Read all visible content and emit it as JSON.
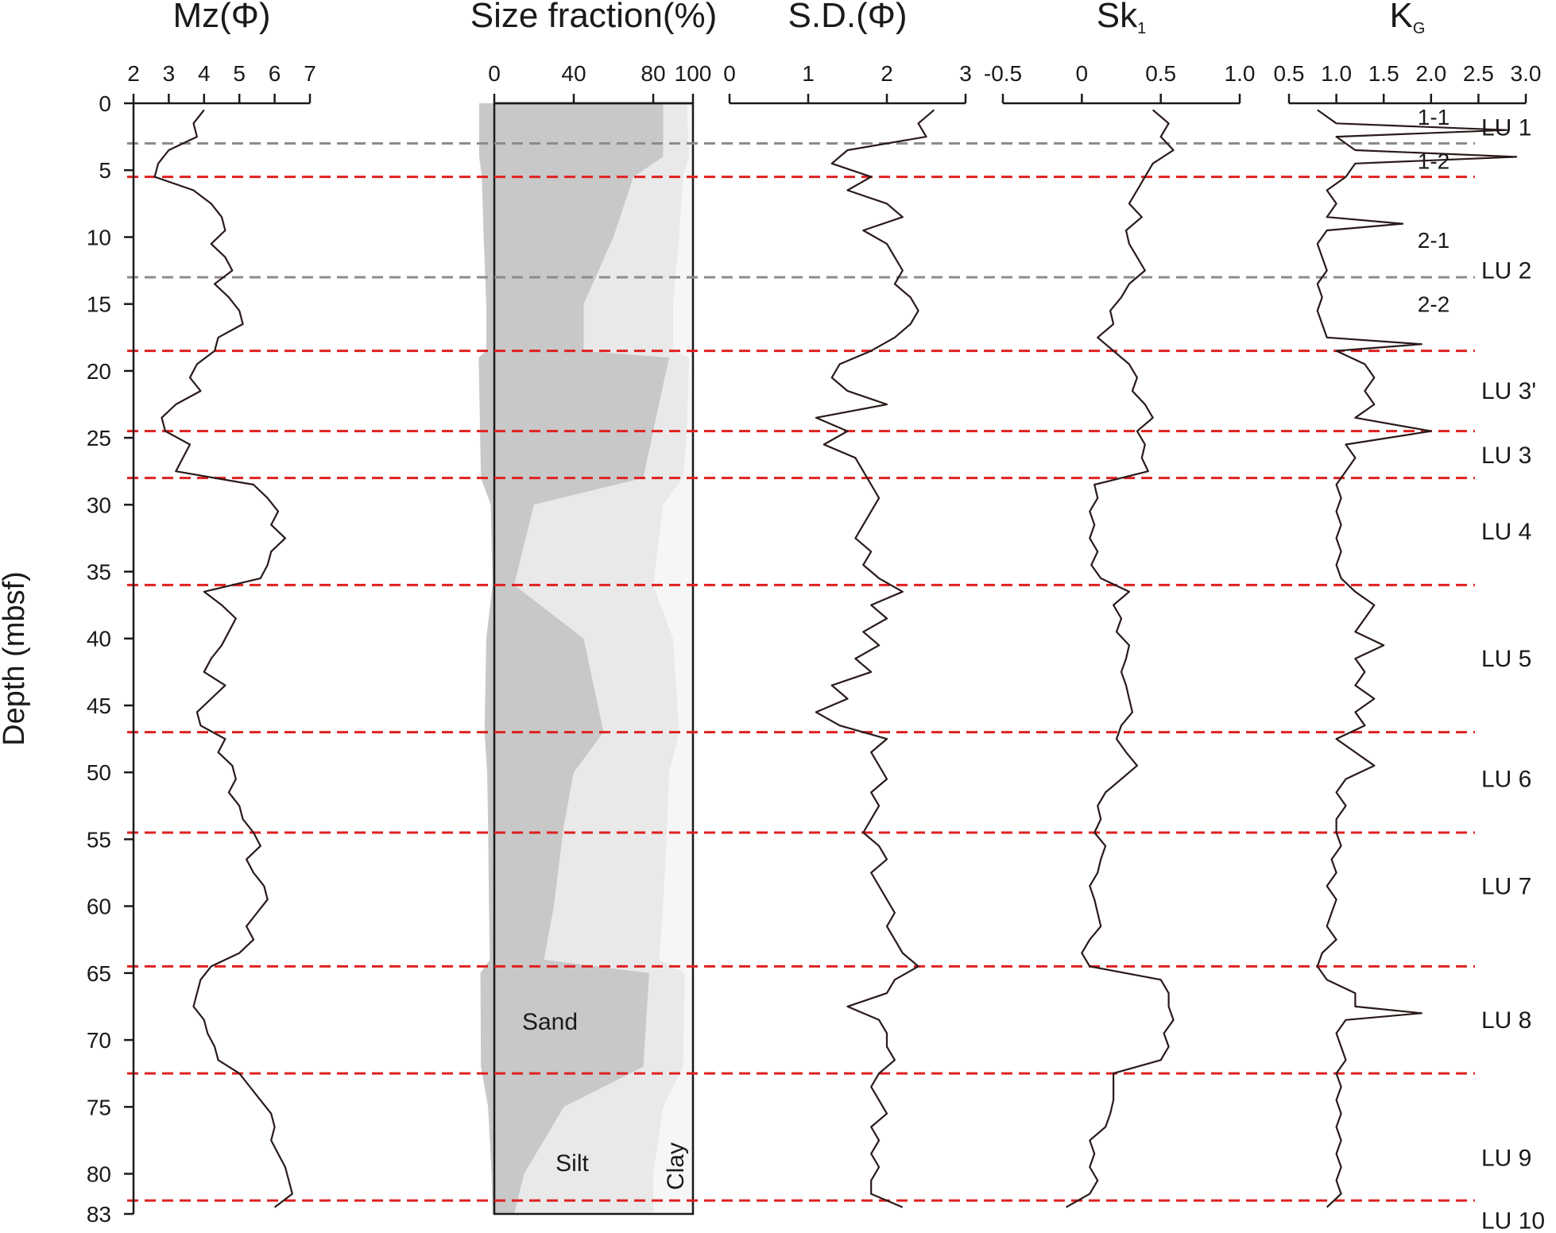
{
  "chart_data": {
    "type": "line",
    "ylabel": "Depth (mbsf)",
    "ylim": [
      0,
      83
    ],
    "depth_ticks": [
      "0",
      "5",
      "10",
      "15",
      "20",
      "25",
      "30",
      "35",
      "40",
      "45",
      "50",
      "55",
      "60",
      "65",
      "70",
      "75",
      "80",
      "83"
    ],
    "colors": {
      "curve": "#2a1a1a",
      "unit_boundary": "#e02020",
      "subunit_boundary": "#8c8c8c",
      "sand": "#c8c8c8",
      "silt": "#e9e9e9",
      "clay": "#f6f6f6"
    },
    "panels": [
      {
        "id": "mz",
        "title": "Mz(Φ)",
        "xlim": [
          2,
          7
        ],
        "tick_values": [
          2,
          3,
          4,
          5,
          6,
          7
        ],
        "tick_labels": [
          "2",
          "3",
          "4",
          "5",
          "6",
          "7"
        ],
        "depth": [
          0.5,
          1.5,
          2.5,
          3.5,
          4.5,
          5.5,
          6.5,
          7.5,
          8.5,
          9.5,
          10.5,
          11.5,
          12.5,
          13.5,
          14.5,
          15.5,
          16.5,
          17.5,
          18.5,
          19.5,
          20.5,
          21.5,
          22.5,
          23.5,
          24.5,
          25.5,
          26.5,
          27.5,
          28.5,
          29.5,
          30.5,
          31.5,
          32.5,
          33.5,
          34.5,
          35.5,
          36.5,
          37.5,
          38.5,
          39.5,
          40.5,
          41.5,
          42.5,
          43.5,
          44.5,
          45.5,
          46.5,
          47.5,
          48.5,
          49.5,
          50.5,
          51.5,
          52.5,
          53.5,
          54.5,
          55.5,
          56.5,
          57.5,
          58.5,
          59.5,
          60.5,
          61.5,
          62.5,
          63.5,
          64.5,
          65.5,
          66.5,
          67.5,
          68.5,
          69.5,
          70.5,
          71.5,
          72.5,
          73.5,
          74.5,
          75.5,
          76.5,
          77.5,
          78.5,
          79.5,
          80.5,
          81.5,
          82.5
        ],
        "values": [
          4.0,
          3.7,
          3.8,
          3.0,
          2.7,
          2.6,
          3.7,
          4.2,
          4.5,
          4.6,
          4.2,
          4.6,
          4.8,
          4.3,
          4.7,
          5.0,
          5.1,
          4.4,
          4.3,
          3.8,
          3.6,
          3.9,
          3.2,
          2.8,
          2.9,
          3.6,
          3.4,
          3.2,
          5.4,
          5.8,
          6.1,
          5.9,
          6.3,
          5.9,
          5.8,
          5.6,
          4.0,
          4.5,
          4.9,
          4.7,
          4.5,
          4.2,
          4.0,
          4.6,
          4.2,
          3.8,
          3.9,
          4.6,
          4.4,
          4.8,
          4.9,
          4.7,
          5.0,
          5.1,
          5.4,
          5.6,
          5.2,
          5.4,
          5.7,
          5.8,
          5.5,
          5.2,
          5.4,
          5.0,
          4.2,
          3.9,
          3.8,
          3.7,
          4.0,
          4.1,
          4.3,
          4.4,
          5.0,
          5.3,
          5.6,
          5.9,
          6.0,
          5.9,
          6.1,
          6.3,
          6.4,
          6.5,
          6.0
        ]
      },
      {
        "id": "size",
        "title": "Size fraction(%)",
        "xlim": [
          0,
          100
        ],
        "tick_values": [
          0,
          40,
          80,
          100
        ],
        "tick_labels": [
          "0",
          "40",
          "80",
          "100"
        ],
        "fraction_labels": {
          "sand": "Sand",
          "silt": "Silt",
          "clay": "Clay"
        },
        "depth": [
          0,
          4,
          5.5,
          10,
          15,
          18.5,
          19,
          24.5,
          28,
          30,
          36,
          40,
          47,
          50,
          54,
          60,
          64,
          65,
          72,
          75,
          80,
          83
        ],
        "sand_pct": [
          85,
          85,
          70,
          60,
          45,
          45,
          88,
          80,
          75,
          20,
          10,
          45,
          55,
          40,
          35,
          30,
          25,
          78,
          75,
          35,
          15,
          10
        ],
        "silt_pct": [
          12,
          13,
          25,
          33,
          45,
          45,
          10,
          17,
          20,
          65,
          70,
          45,
          38,
          48,
          52,
          55,
          58,
          18,
          20,
          50,
          65,
          70
        ],
        "clay_pct": [
          3,
          2,
          5,
          7,
          10,
          10,
          2,
          3,
          5,
          15,
          20,
          10,
          7,
          12,
          13,
          15,
          17,
          4,
          5,
          15,
          20,
          20
        ]
      },
      {
        "id": "sd",
        "title": "S.D.(Φ)",
        "xlim": [
          0,
          3
        ],
        "tick_values": [
          0,
          1,
          2,
          3
        ],
        "tick_labels": [
          "0",
          "1",
          "2",
          "3"
        ],
        "depth": [
          0.5,
          1.5,
          2.5,
          3.5,
          4.5,
          5.5,
          6.5,
          7.5,
          8.5,
          9.5,
          10.5,
          11.5,
          12.5,
          13.5,
          14.5,
          15.5,
          16.5,
          17.5,
          18.5,
          19.5,
          20.5,
          21.5,
          22.5,
          23.5,
          24.5,
          25.5,
          26.5,
          27.5,
          28.5,
          29.5,
          30.5,
          31.5,
          32.5,
          33.5,
          34.5,
          35.5,
          36.5,
          37.5,
          38.5,
          39.5,
          40.5,
          41.5,
          42.5,
          43.5,
          44.5,
          45.5,
          46.5,
          47.5,
          48.5,
          49.5,
          50.5,
          51.5,
          52.5,
          53.5,
          54.5,
          55.5,
          56.5,
          57.5,
          58.5,
          59.5,
          60.5,
          61.5,
          62.5,
          63.5,
          64.5,
          65.5,
          66.5,
          67.5,
          68.5,
          69.5,
          70.5,
          71.5,
          72.5,
          73.5,
          74.5,
          75.5,
          76.5,
          77.5,
          78.5,
          79.5,
          80.5,
          81.5,
          82.5
        ],
        "values": [
          2.6,
          2.4,
          2.5,
          1.5,
          1.3,
          1.8,
          1.5,
          2.0,
          2.2,
          1.7,
          2.0,
          2.1,
          2.2,
          2.1,
          2.3,
          2.4,
          2.3,
          2.1,
          1.8,
          1.4,
          1.3,
          1.5,
          2.0,
          1.1,
          1.5,
          1.2,
          1.6,
          1.7,
          1.8,
          1.9,
          1.8,
          1.7,
          1.6,
          1.8,
          1.7,
          1.9,
          2.2,
          1.8,
          2.0,
          1.7,
          1.9,
          1.6,
          1.8,
          1.3,
          1.5,
          1.1,
          1.4,
          2.0,
          1.8,
          1.9,
          2.0,
          1.8,
          1.9,
          1.8,
          1.7,
          1.9,
          2.0,
          1.8,
          1.9,
          2.0,
          2.1,
          2.0,
          2.1,
          2.2,
          2.4,
          2.1,
          2.0,
          1.5,
          1.9,
          2.0,
          2.0,
          2.1,
          1.9,
          1.8,
          1.9,
          2.0,
          1.8,
          1.9,
          1.8,
          1.9,
          1.8,
          1.8,
          2.2
        ]
      },
      {
        "id": "sk",
        "title": "Sk",
        "title_subscript": "1",
        "xlim": [
          -0.5,
          1.0
        ],
        "tick_values": [
          -0.5,
          0,
          0.5,
          1.0
        ],
        "tick_labels": [
          "-0.5",
          "0",
          "0.5",
          "1.0"
        ],
        "depth": [
          0.5,
          1.5,
          2.5,
          3.5,
          4.5,
          5.5,
          6.5,
          7.5,
          8.5,
          9.5,
          10.5,
          11.5,
          12.5,
          13.5,
          14.5,
          15.5,
          16.5,
          17.5,
          18.5,
          19.5,
          20.5,
          21.5,
          22.5,
          23.5,
          24.5,
          25.5,
          26.5,
          27.5,
          28.5,
          29.5,
          30.5,
          31.5,
          32.5,
          33.5,
          34.5,
          35.5,
          36.5,
          37.5,
          38.5,
          39.5,
          40.5,
          41.5,
          42.5,
          43.5,
          44.5,
          45.5,
          46.5,
          47.5,
          48.5,
          49.5,
          50.5,
          51.5,
          52.5,
          53.5,
          54.5,
          55.5,
          56.5,
          57.5,
          58.5,
          59.5,
          60.5,
          61.5,
          62.5,
          63.5,
          64.5,
          65.5,
          66.5,
          67.5,
          68.5,
          69.5,
          70.5,
          71.5,
          72.5,
          73.5,
          74.5,
          75.5,
          76.5,
          77.5,
          78.5,
          79.5,
          80.5,
          81.5,
          82.5
        ],
        "values": [
          0.45,
          0.55,
          0.5,
          0.58,
          0.45,
          0.4,
          0.35,
          0.3,
          0.38,
          0.28,
          0.3,
          0.35,
          0.4,
          0.3,
          0.25,
          0.18,
          0.2,
          0.1,
          0.2,
          0.3,
          0.35,
          0.32,
          0.4,
          0.45,
          0.35,
          0.4,
          0.38,
          0.42,
          0.08,
          0.1,
          0.05,
          0.08,
          0.05,
          0.1,
          0.06,
          0.12,
          0.3,
          0.2,
          0.25,
          0.22,
          0.3,
          0.28,
          0.25,
          0.28,
          0.3,
          0.32,
          0.25,
          0.22,
          0.28,
          0.35,
          0.25,
          0.15,
          0.1,
          0.12,
          0.08,
          0.15,
          0.12,
          0.1,
          0.05,
          0.08,
          0.1,
          0.12,
          0.05,
          0.0,
          0.05,
          0.5,
          0.55,
          0.55,
          0.58,
          0.52,
          0.55,
          0.5,
          0.2,
          0.2,
          0.2,
          0.18,
          0.15,
          0.05,
          0.08,
          0.05,
          0.1,
          0.05,
          -0.1
        ]
      },
      {
        "id": "kg",
        "title": "K",
        "title_subscript": "G",
        "xlim": [
          0.5,
          3.0
        ],
        "tick_values": [
          0.5,
          1.0,
          1.5,
          2.0,
          2.5,
          3.0
        ],
        "tick_labels": [
          "0.5",
          "1.0",
          "1.5",
          "2.0",
          "2.5",
          "3.0"
        ],
        "depth": [
          0.5,
          1.5,
          2.0,
          2.5,
          3.5,
          4.0,
          4.5,
          5.5,
          6.5,
          7.5,
          8.5,
          9.0,
          9.5,
          10.5,
          11.5,
          12.5,
          13.5,
          14.5,
          15.5,
          16.5,
          17.5,
          18.0,
          18.5,
          19.5,
          20.5,
          21.5,
          22.5,
          23.5,
          24.5,
          25.5,
          26.5,
          27.5,
          28.5,
          29.5,
          30.5,
          31.5,
          32.5,
          33.5,
          34.5,
          35.5,
          36.5,
          37.5,
          38.5,
          39.5,
          40.5,
          41.5,
          42.5,
          43.5,
          44.5,
          45.5,
          46.5,
          47.5,
          48.5,
          49.5,
          50.5,
          51.5,
          52.5,
          53.5,
          54.5,
          55.5,
          56.5,
          57.5,
          58.5,
          59.5,
          60.5,
          61.5,
          62.5,
          63.5,
          64.5,
          65.5,
          66.5,
          67.5,
          68.0,
          68.5,
          69.5,
          70.5,
          71.5,
          72.5,
          73.5,
          74.5,
          75.5,
          76.5,
          77.5,
          78.5,
          79.5,
          80.5,
          81.5,
          82.5
        ],
        "values": [
          0.8,
          1.0,
          2.8,
          1.0,
          1.2,
          2.9,
          1.2,
          1.1,
          0.9,
          1.0,
          0.9,
          1.7,
          0.9,
          0.8,
          0.85,
          0.9,
          0.8,
          0.85,
          0.8,
          0.85,
          0.9,
          1.9,
          1.0,
          1.3,
          1.4,
          1.3,
          1.4,
          1.2,
          2.0,
          1.1,
          1.2,
          1.1,
          1.0,
          1.05,
          1.0,
          1.05,
          1.0,
          1.05,
          1.0,
          1.05,
          1.2,
          1.4,
          1.3,
          1.2,
          1.5,
          1.2,
          1.3,
          1.2,
          1.4,
          1.2,
          1.3,
          1.0,
          1.2,
          1.4,
          1.1,
          1.0,
          1.1,
          1.0,
          1.0,
          1.05,
          0.95,
          1.0,
          0.9,
          1.0,
          0.95,
          0.9,
          1.0,
          0.85,
          0.8,
          0.9,
          1.2,
          1.2,
          1.9,
          1.1,
          1.0,
          1.05,
          1.1,
          1.0,
          1.05,
          1.0,
          1.05,
          1.0,
          1.05,
          1.0,
          1.05,
          1.0,
          1.05,
          0.9
        ]
      }
    ],
    "unit_boundaries": [
      5.5,
      18.5,
      24.5,
      28,
      36,
      47,
      54.5,
      64.5,
      72.5,
      82
    ],
    "subunit_boundaries": [
      3,
      13
    ],
    "lithologic_units": [
      {
        "label": "LU 1",
        "depth": 1.8
      },
      {
        "label": "LU 2",
        "depth": 12.5
      },
      {
        "label": "LU 3'",
        "depth": 21.5
      },
      {
        "label": "LU 3",
        "depth": 26.3
      },
      {
        "label": "LU 4",
        "depth": 32
      },
      {
        "label": "LU 5",
        "depth": 41.5
      },
      {
        "label": "LU 6",
        "depth": 50.5
      },
      {
        "label": "LU 7",
        "depth": 58.5
      },
      {
        "label": "LU 8",
        "depth": 68.5
      },
      {
        "label": "LU 9",
        "depth": 78.8
      },
      {
        "label": "LU 10",
        "depth": 83.5
      }
    ],
    "subunits": [
      {
        "label": "1-1",
        "depth": 1.0
      },
      {
        "label": "1-2",
        "depth": 4.3
      },
      {
        "label": "2-1",
        "depth": 10.2
      },
      {
        "label": "2-2",
        "depth": 15.0
      }
    ]
  }
}
